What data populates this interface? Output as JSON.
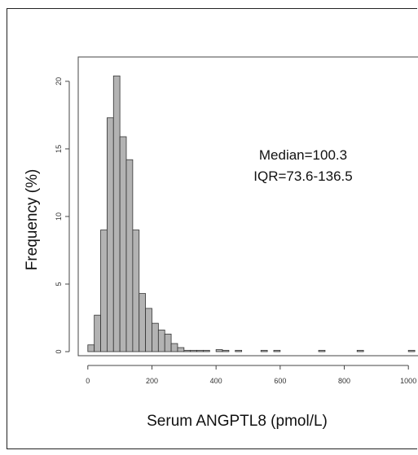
{
  "chart_data": {
    "type": "bar",
    "subtype": "histogram",
    "xlabel": "Serum ANGPTL8 (pmol/L)",
    "ylabel": "Frequency (%)",
    "xlim": [
      -30,
      1030
    ],
    "ylim": [
      -0.3,
      21.8
    ],
    "x_ticks": [
      0,
      200,
      400,
      600,
      800,
      1000
    ],
    "y_ticks": [
      0,
      5,
      10,
      15,
      20
    ],
    "bin_width": 20,
    "bins": [
      {
        "start": 0,
        "value": 0.5
      },
      {
        "start": 20,
        "value": 2.7
      },
      {
        "start": 40,
        "value": 9.0
      },
      {
        "start": 60,
        "value": 17.3
      },
      {
        "start": 80,
        "value": 20.4
      },
      {
        "start": 100,
        "value": 15.9
      },
      {
        "start": 120,
        "value": 14.2
      },
      {
        "start": 140,
        "value": 9.0
      },
      {
        "start": 160,
        "value": 4.3
      },
      {
        "start": 180,
        "value": 3.2
      },
      {
        "start": 200,
        "value": 2.1
      },
      {
        "start": 220,
        "value": 1.6
      },
      {
        "start": 240,
        "value": 1.3
      },
      {
        "start": 260,
        "value": 0.6
      },
      {
        "start": 280,
        "value": 0.3
      },
      {
        "start": 300,
        "value": 0.1
      },
      {
        "start": 320,
        "value": 0.1
      },
      {
        "start": 340,
        "value": 0.1
      },
      {
        "start": 360,
        "value": 0.1
      },
      {
        "start": 400,
        "value": 0.15
      },
      {
        "start": 420,
        "value": 0.1
      },
      {
        "start": 460,
        "value": 0.1
      },
      {
        "start": 540,
        "value": 0.1
      },
      {
        "start": 580,
        "value": 0.1
      },
      {
        "start": 720,
        "value": 0.1
      },
      {
        "start": 840,
        "value": 0.1
      },
      {
        "start": 1000,
        "value": 0.1
      }
    ],
    "annotations": [
      "Median=100.3",
      "IQR=73.6-136.5"
    ],
    "grid": false,
    "colors": {
      "bar_fill": "#b3b3b3",
      "bar_stroke": "#333333"
    }
  }
}
